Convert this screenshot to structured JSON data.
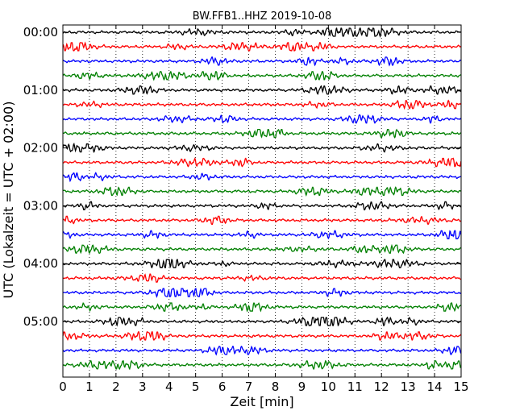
{
  "chart_data": {
    "type": "line",
    "subtype": "dayplot-seismogram",
    "title": "BW.FFB1..HHZ 2019-10-08",
    "xlabel": "Zeit  [min]",
    "ylabel": "UTC (Lokalzeit = UTC + 02:00)",
    "xlim": [
      0,
      15
    ],
    "x_ticks": [
      "0",
      "1",
      "2",
      "3",
      "4",
      "5",
      "6",
      "7",
      "8",
      "9",
      "10",
      "11",
      "12",
      "13",
      "14",
      "15"
    ],
    "y_ticks": [
      "00:00",
      "01:00",
      "02:00",
      "03:00",
      "04:00",
      "05:00"
    ],
    "grid": "vertical dotted at each minute",
    "trace_colors_cycle": [
      "#000000",
      "#ff0000",
      "#0000ff",
      "#008000"
    ],
    "trace_count": 24,
    "trace_interval_minutes": 15,
    "start_time": "00:00",
    "end_time": "06:00"
  }
}
